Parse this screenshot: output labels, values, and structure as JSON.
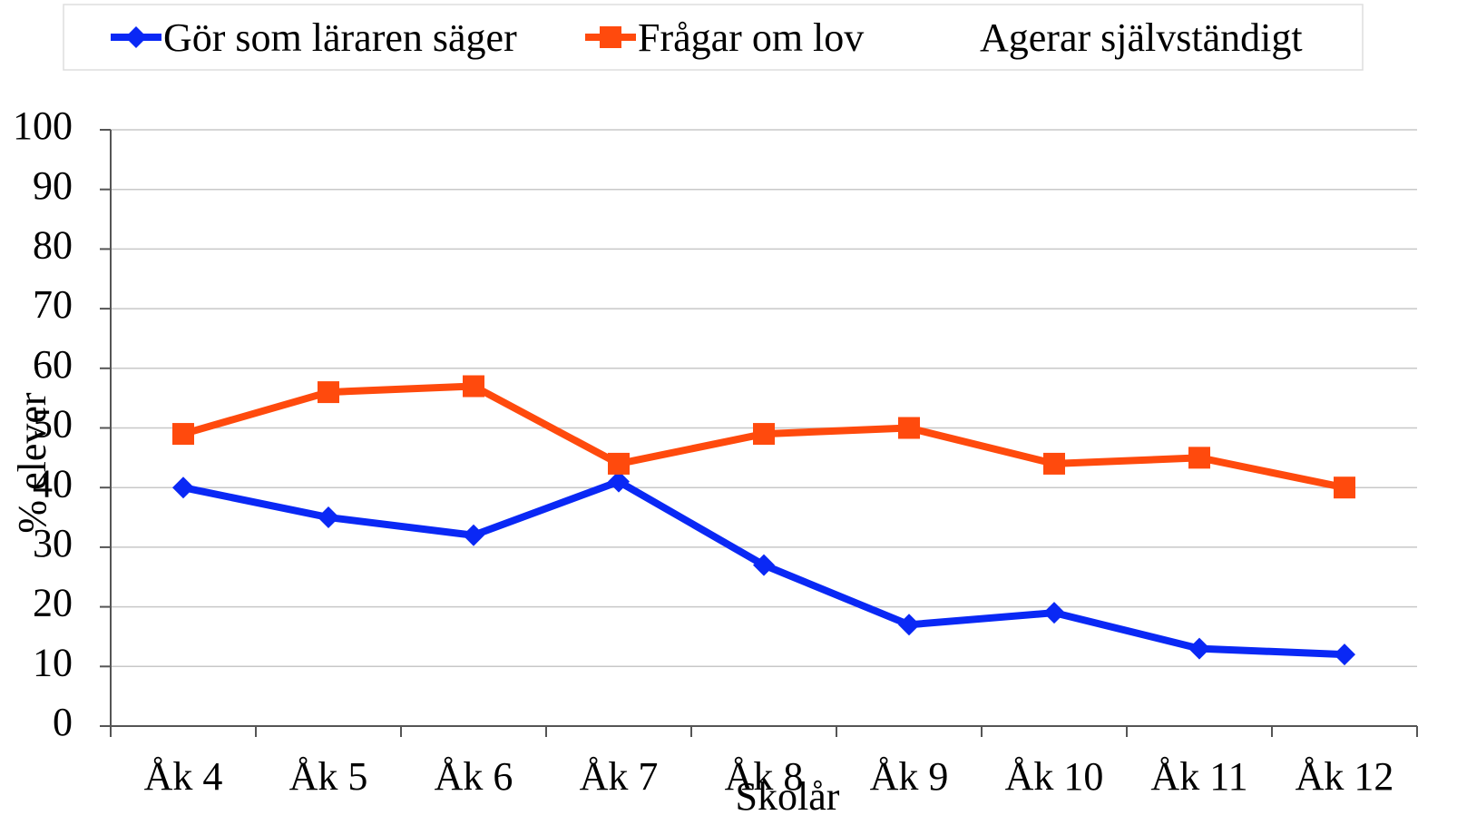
{
  "chart_data": {
    "type": "line",
    "x_label": "Skolår",
    "y_label": "% elever",
    "categories": [
      "Åk 4",
      "Åk 5",
      "Åk 6",
      "Åk 7",
      "Åk 8",
      "Åk 9",
      "Åk 10",
      "Åk 11",
      "Åk 12"
    ],
    "series": [
      {
        "name": "Gör som läraren säger",
        "color": "#0a28f5",
        "marker": "diamond",
        "values": [
          40,
          35,
          32,
          41,
          27,
          17,
          19,
          13,
          12
        ]
      },
      {
        "name": "Frågar om lov",
        "color": "#ff4a0d",
        "marker": "square",
        "values": [
          49,
          56,
          57,
          44,
          49,
          50,
          44,
          45,
          40
        ]
      },
      {
        "name": "Agerar självständigt",
        "values": [
          null,
          null,
          null,
          null,
          null,
          null,
          null,
          null,
          null
        ]
      }
    ],
    "ylim": [
      0,
      100
    ],
    "yticks": [
      0,
      10,
      20,
      30,
      40,
      50,
      60,
      70,
      80,
      90,
      100
    ],
    "grid": true,
    "legend": "top"
  }
}
